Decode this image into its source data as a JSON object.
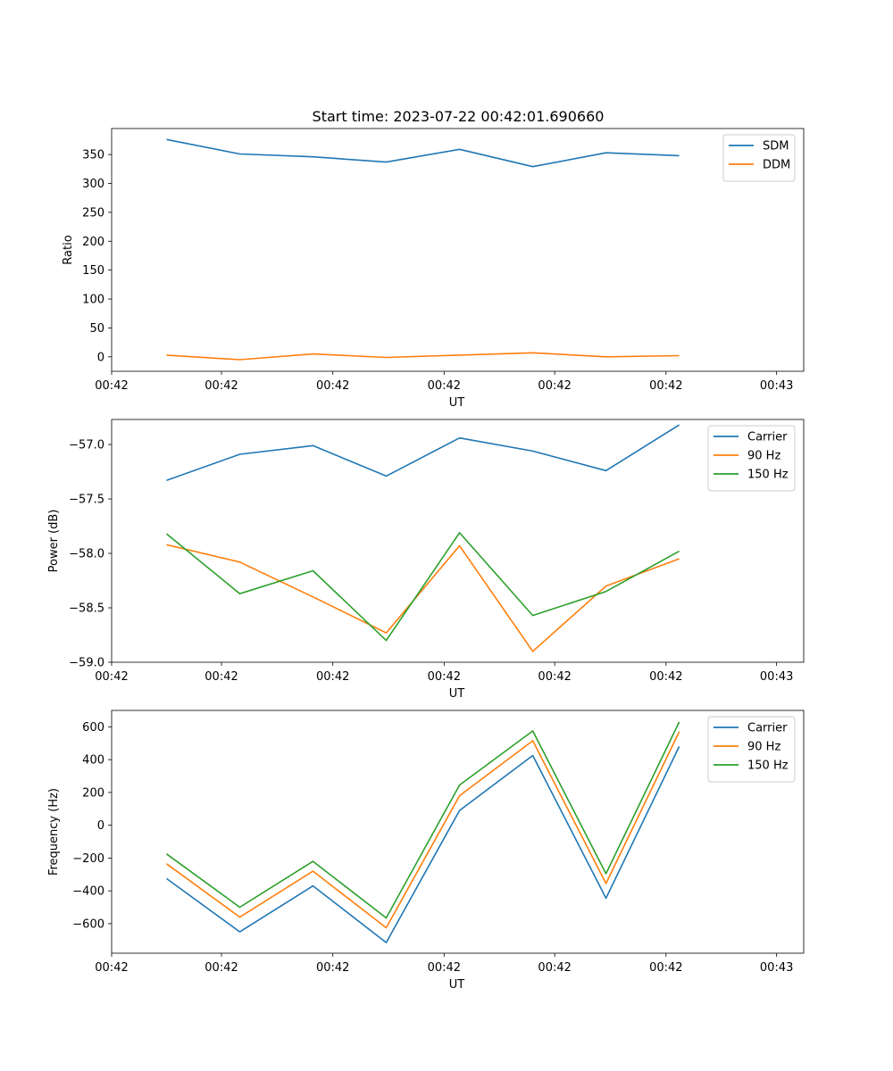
{
  "figure_title": "Start time: 2023-07-22 00:42:01.690660",
  "colors": {
    "blue": "#1f77b4",
    "orange": "#ff7f0e",
    "green": "#2ca02c"
  },
  "chart_data": [
    {
      "type": "line",
      "title": "Start time: 2023-07-22 00:42:01.690660",
      "xlabel": "UT",
      "ylabel": "Ratio",
      "xlim": [
        -0.75,
        8.7
      ],
      "ylim": [
        -25,
        395
      ],
      "x": [
        0,
        1,
        2,
        3,
        4,
        5,
        6,
        7
      ],
      "xticks": [
        -0.75,
        0.75,
        2.27,
        3.79,
        5.3,
        6.82,
        8.33
      ],
      "xticklabels": [
        "00:42",
        "00:42",
        "00:42",
        "00:42",
        "00:42",
        "00:42",
        "00:43"
      ],
      "yticks": [
        0,
        50,
        100,
        150,
        200,
        250,
        300,
        350
      ],
      "yticklabels": [
        "0",
        "50",
        "100",
        "150",
        "200",
        "250",
        "300",
        "350"
      ],
      "legend_position": "top-right",
      "series": [
        {
          "name": "SDM",
          "color": "#1f77b4",
          "values": [
            376,
            351,
            346,
            337,
            359,
            329,
            353,
            348
          ]
        },
        {
          "name": "DDM",
          "color": "#ff7f0e",
          "values": [
            3,
            -5,
            5,
            -1,
            3,
            7,
            0,
            2
          ]
        }
      ]
    },
    {
      "type": "line",
      "title": "",
      "xlabel": "UT",
      "ylabel": "Power (dB)",
      "xlim": [
        -0.75,
        8.7
      ],
      "ylim": [
        -59.0,
        -56.77
      ],
      "x": [
        0,
        1,
        2,
        3,
        4,
        5,
        6,
        7
      ],
      "xticks": [
        -0.75,
        0.75,
        2.27,
        3.79,
        5.3,
        6.82,
        8.33
      ],
      "xticklabels": [
        "00:42",
        "00:42",
        "00:42",
        "00:42",
        "00:42",
        "00:42",
        "00:43"
      ],
      "yticks": [
        -59.0,
        -58.5,
        -58.0,
        -57.5,
        -57.0
      ],
      "yticklabels": [
        "−59.0",
        "−58.5",
        "−58.0",
        "−57.5",
        "−57.0"
      ],
      "legend_position": "top-right",
      "series": [
        {
          "name": "Carrier",
          "color": "#1f77b4",
          "values": [
            -57.33,
            -57.09,
            -57.01,
            -57.29,
            -56.94,
            -57.06,
            -57.24,
            -56.82
          ]
        },
        {
          "name": "90 Hz",
          "color": "#ff7f0e",
          "values": [
            -57.92,
            -58.08,
            -58.4,
            -58.73,
            -57.93,
            -58.9,
            -58.3,
            -58.05
          ]
        },
        {
          "name": "150 Hz",
          "color": "#2ca02c",
          "values": [
            -57.82,
            -58.37,
            -58.16,
            -58.8,
            -57.81,
            -58.57,
            -58.35,
            -57.98
          ]
        }
      ]
    },
    {
      "type": "line",
      "title": "",
      "xlabel": "UT",
      "ylabel": "Frequency (Hz)",
      "xlim": [
        -0.75,
        8.7
      ],
      "ylim": [
        -780,
        700
      ],
      "x": [
        0,
        1,
        2,
        3,
        4,
        5,
        6,
        7
      ],
      "xticks": [
        -0.75,
        0.75,
        2.27,
        3.79,
        5.3,
        6.82,
        8.33
      ],
      "xticklabels": [
        "00:42",
        "00:42",
        "00:42",
        "00:42",
        "00:42",
        "00:42",
        "00:43"
      ],
      "yticks": [
        -600,
        -400,
        -200,
        0,
        200,
        400,
        600
      ],
      "yticklabels": [
        "−600",
        "−400",
        "−200",
        "0",
        "200",
        "400",
        "600"
      ],
      "legend_position": "top-right",
      "series": [
        {
          "name": "Carrier",
          "color": "#1f77b4",
          "values": [
            -325,
            -650,
            -370,
            -715,
            90,
            425,
            -445,
            480
          ]
        },
        {
          "name": "90 Hz",
          "color": "#ff7f0e",
          "values": [
            -235,
            -560,
            -280,
            -625,
            180,
            515,
            -355,
            570
          ]
        },
        {
          "name": "150 Hz",
          "color": "#2ca02c",
          "values": [
            -175,
            -500,
            -220,
            -565,
            245,
            575,
            -295,
            630
          ]
        }
      ]
    }
  ]
}
